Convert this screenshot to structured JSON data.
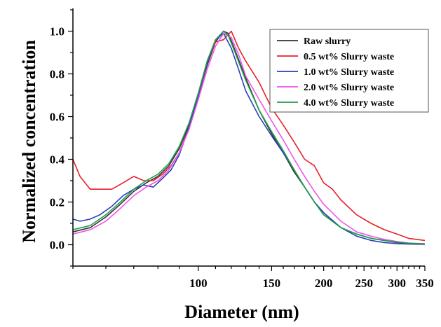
{
  "chart_data": {
    "type": "line",
    "xlabel": "Diameter (nm)",
    "ylabel": "Normalized concentration",
    "x_scale": "log",
    "xlim": [
      50,
      350
    ],
    "ylim": [
      -0.1,
      1.1
    ],
    "x_ticks": [
      {
        "value": 100,
        "label": "100"
      },
      {
        "value": 150,
        "label": "150"
      },
      {
        "value": 200,
        "label": "200"
      },
      {
        "value": 250,
        "label": "250"
      },
      {
        "value": 300,
        "label": "300"
      },
      {
        "value": 350,
        "label": "350"
      }
    ],
    "y_ticks": [
      {
        "value": 0.0,
        "label": "0.0"
      },
      {
        "value": 0.2,
        "label": "0.2"
      },
      {
        "value": 0.4,
        "label": "0.4"
      },
      {
        "value": 0.6,
        "label": "0.6"
      },
      {
        "value": 0.8,
        "label": "0.8"
      },
      {
        "value": 1.0,
        "label": "1.0"
      }
    ],
    "legend_position": "top-right",
    "series": [
      {
        "name": "Raw slurry",
        "color": "#333333",
        "x": [
          50,
          55,
          60,
          65,
          70,
          75,
          80,
          85,
          90,
          95,
          100,
          105,
          110,
          115,
          118,
          122,
          130,
          140,
          150,
          160,
          170,
          180,
          190,
          200,
          220,
          240,
          260,
          280,
          300,
          320,
          350
        ],
        "y": [
          0.06,
          0.08,
          0.13,
          0.19,
          0.25,
          0.29,
          0.32,
          0.37,
          0.45,
          0.56,
          0.7,
          0.84,
          0.95,
          1.0,
          0.99,
          0.92,
          0.78,
          0.63,
          0.52,
          0.43,
          0.34,
          0.27,
          0.2,
          0.15,
          0.08,
          0.05,
          0.03,
          0.02,
          0.01,
          0.005,
          0.003
        ]
      },
      {
        "name": "0.5 wt% Slurry waste",
        "color": "#e8202a",
        "x": [
          50,
          52,
          55,
          58,
          62,
          66,
          70,
          74,
          78,
          82,
          86,
          90,
          95,
          100,
          105,
          110,
          115,
          120,
          125,
          130,
          140,
          150,
          160,
          170,
          180,
          190,
          200,
          210,
          220,
          240,
          260,
          280,
          300,
          320,
          350
        ],
        "y": [
          0.4,
          0.32,
          0.26,
          0.26,
          0.26,
          0.29,
          0.32,
          0.3,
          0.3,
          0.33,
          0.37,
          0.43,
          0.55,
          0.69,
          0.85,
          0.95,
          0.96,
          1.0,
          0.92,
          0.86,
          0.76,
          0.64,
          0.56,
          0.48,
          0.4,
          0.37,
          0.29,
          0.26,
          0.21,
          0.14,
          0.1,
          0.07,
          0.05,
          0.03,
          0.02
        ]
      },
      {
        "name": "1.0 wt% Slurry waste",
        "color": "#2a3fb8",
        "x": [
          50,
          52,
          55,
          58,
          62,
          66,
          70,
          74,
          78,
          82,
          86,
          90,
          95,
          100,
          105,
          110,
          115,
          120,
          125,
          130,
          140,
          150,
          160,
          170,
          180,
          190,
          200,
          220,
          240,
          260,
          280,
          300,
          320,
          350
        ],
        "y": [
          0.12,
          0.11,
          0.12,
          0.14,
          0.18,
          0.23,
          0.26,
          0.28,
          0.27,
          0.31,
          0.35,
          0.42,
          0.55,
          0.7,
          0.85,
          0.96,
          0.99,
          0.92,
          0.82,
          0.72,
          0.6,
          0.51,
          0.43,
          0.35,
          0.27,
          0.2,
          0.15,
          0.08,
          0.04,
          0.02,
          0.01,
          0.005,
          0.003,
          0.002
        ]
      },
      {
        "name": "2.0 wt% Slurry waste",
        "color": "#ee55ee",
        "x": [
          50,
          55,
          60,
          65,
          70,
          75,
          80,
          85,
          90,
          95,
          100,
          105,
          110,
          115,
          120,
          125,
          130,
          140,
          150,
          160,
          170,
          180,
          190,
          200,
          220,
          240,
          260,
          280,
          300,
          320,
          350
        ],
        "y": [
          0.05,
          0.07,
          0.11,
          0.17,
          0.23,
          0.27,
          0.3,
          0.35,
          0.43,
          0.54,
          0.68,
          0.82,
          0.93,
          0.99,
          0.97,
          0.89,
          0.79,
          0.68,
          0.58,
          0.49,
          0.4,
          0.32,
          0.25,
          0.19,
          0.11,
          0.06,
          0.04,
          0.025,
          0.015,
          0.008,
          0.005
        ]
      },
      {
        "name": "4.0 wt% Slurry waste",
        "color": "#1f9e4a",
        "x": [
          50,
          55,
          60,
          65,
          70,
          75,
          80,
          85,
          90,
          95,
          100,
          105,
          110,
          115,
          118,
          122,
          130,
          140,
          150,
          160,
          170,
          180,
          190,
          200,
          220,
          240,
          260,
          280,
          300,
          320,
          350
        ],
        "y": [
          0.07,
          0.09,
          0.14,
          0.2,
          0.26,
          0.3,
          0.33,
          0.38,
          0.46,
          0.57,
          0.71,
          0.86,
          0.96,
          1.0,
          0.98,
          0.91,
          0.77,
          0.63,
          0.53,
          0.44,
          0.35,
          0.27,
          0.2,
          0.14,
          0.08,
          0.05,
          0.03,
          0.02,
          0.012,
          0.007,
          0.004
        ]
      }
    ]
  }
}
